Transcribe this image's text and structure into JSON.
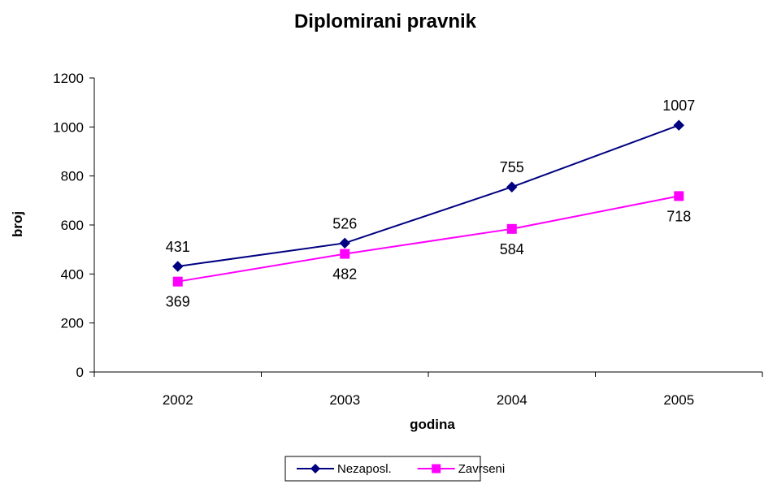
{
  "chart_data": {
    "type": "line",
    "title": "Diplomirani pravnik",
    "xlabel": "godina",
    "ylabel": "broj",
    "categories": [
      "2002",
      "2003",
      "2004",
      "2005"
    ],
    "ylim": [
      0,
      1200
    ],
    "yticks": [
      0,
      200,
      400,
      600,
      800,
      1000,
      1200
    ],
    "grid": false,
    "legend_position": "bottom",
    "series": [
      {
        "name": "Nezaposl.",
        "values": [
          431,
          526,
          755,
          1007
        ],
        "color": "#000080",
        "marker": "diamond",
        "label_position": "above"
      },
      {
        "name": "Zavrseni",
        "values": [
          369,
          482,
          584,
          718
        ],
        "color": "#FF00FF",
        "marker": "square",
        "label_position": "below"
      }
    ]
  }
}
